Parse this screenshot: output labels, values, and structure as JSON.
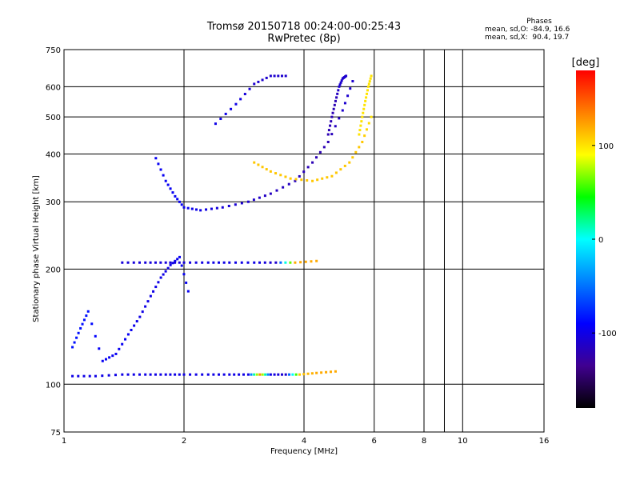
{
  "header": {
    "title_line1": "Tromsø 20150718 00:24:00-00:25:43",
    "title_line2": "RwPretec (8p)"
  },
  "phase_stats": {
    "heading": "Phases",
    "line_o": "mean, sd,O: -84.9, 16.6",
    "line_x": "mean, sd,X:  90.4, 19.7"
  },
  "colorbar": {
    "label": "[deg]",
    "ticks": [
      "100",
      "0",
      "-100"
    ],
    "tick_values": [
      100,
      0,
      -100
    ],
    "range": [
      -180,
      180
    ],
    "colors": [
      "#ff0000",
      "#ff8000",
      "#ffff00",
      "#00ff00",
      "#00ffff",
      "#0080ff",
      "#0000ff",
      "#400090",
      "#000000"
    ]
  },
  "chart_data": {
    "type": "scatter",
    "title": "Tromsø 20150718 00:24:00-00:25:43",
    "subtitle": "RwPretec (8p)",
    "xlabel": "Frequency [MHz]",
    "ylabel": "Stationary phase Virtual Height [km]",
    "x_scale": "log",
    "y_scale": "log",
    "xlim": [
      1,
      16
    ],
    "ylim": [
      75,
      750
    ],
    "x_ticks": [
      1,
      2,
      4,
      6,
      8,
      10,
      16
    ],
    "y_ticks": [
      75,
      100,
      200,
      300,
      400,
      500,
      600,
      750
    ],
    "x_grid": [
      2,
      4,
      6,
      8,
      9,
      10
    ],
    "y_grid": [
      100,
      200,
      300,
      400,
      500,
      600
    ],
    "grid": true,
    "traces": [
      {
        "desc": "E-layer trace",
        "x": [
          1.05,
          1.2,
          1.4,
          1.6,
          1.8,
          2.0,
          2.3,
          2.6,
          2.9,
          3.1,
          3.3,
          3.6,
          3.9,
          4.3,
          4.8
        ],
        "y": [
          105,
          105,
          106,
          106,
          106,
          106,
          106,
          106,
          106,
          106,
          106,
          106,
          106,
          107,
          108
        ],
        "phase": [
          -100,
          -100,
          -100,
          -100,
          -100,
          -100,
          -100,
          -100,
          -100,
          130,
          -100,
          -110,
          110,
          120,
          120
        ]
      },
      {
        "desc": "low-frequency rising branch",
        "x": [
          1.05,
          1.1,
          1.15,
          1.25,
          1.35,
          1.45,
          1.55,
          1.65,
          1.75,
          1.85,
          1.95,
          2.05
        ],
        "y": [
          125,
          140,
          155,
          115,
          120,
          135,
          150,
          170,
          190,
          205,
          215,
          175
        ],
        "phase": [
          -85,
          -85,
          -85,
          -95,
          -95,
          -95,
          -100,
          -100,
          -100,
          -100,
          -95,
          -95
        ]
      },
      {
        "desc": "Es/F1 layer trace",
        "x": [
          1.4,
          1.6,
          1.8,
          2.0,
          2.3,
          2.6,
          3.0,
          3.4,
          3.8,
          4.3
        ],
        "y": [
          208,
          208,
          208,
          208,
          208,
          208,
          208,
          208,
          208,
          210
        ],
        "phase": [
          -105,
          -105,
          -105,
          -105,
          -100,
          -100,
          -100,
          -110,
          120,
          120
        ]
      },
      {
        "desc": "F-layer O-mode",
        "x": [
          1.7,
          1.8,
          1.9,
          2.0,
          2.2,
          2.5,
          2.9,
          3.3,
          3.8,
          4.2,
          4.6,
          5.0,
          5.3
        ],
        "y": [
          390,
          340,
          310,
          290,
          285,
          290,
          300,
          315,
          340,
          380,
          430,
          520,
          620
        ],
        "phase": [
          -95,
          -95,
          -95,
          -95,
          -100,
          -105,
          -110,
          -115,
          -115,
          -120,
          -120,
          -110,
          -110
        ]
      },
      {
        "desc": "F-layer X-mode",
        "x": [
          3.0,
          3.3,
          3.7,
          4.2,
          4.7,
          5.2,
          5.6,
          5.9
        ],
        "y": [
          380,
          360,
          345,
          340,
          350,
          380,
          430,
          500
        ],
        "phase": [
          110,
          110,
          110,
          110,
          110,
          110,
          110,
          100
        ]
      },
      {
        "desc": "high multi-hop trace",
        "x": [
          2.4,
          2.7,
          3.0,
          3.3,
          3.6
        ],
        "y": [
          480,
          540,
          610,
          640,
          640
        ],
        "phase": [
          -100,
          -100,
          -110,
          -110,
          -110
        ]
      },
      {
        "desc": "vertical O band",
        "x": [
          4.6,
          4.7,
          4.8,
          4.9,
          5.0,
          5.1
        ],
        "y": [
          450,
          500,
          550,
          600,
          630,
          640
        ],
        "phase": [
          -120,
          -120,
          -120,
          -110,
          -110,
          -110
        ]
      },
      {
        "desc": "vertical X band",
        "x": [
          5.5,
          5.6,
          5.7,
          5.8,
          5.9
        ],
        "y": [
          450,
          500,
          550,
          600,
          640
        ],
        "phase": [
          100,
          100,
          100,
          100,
          100
        ]
      }
    ]
  }
}
